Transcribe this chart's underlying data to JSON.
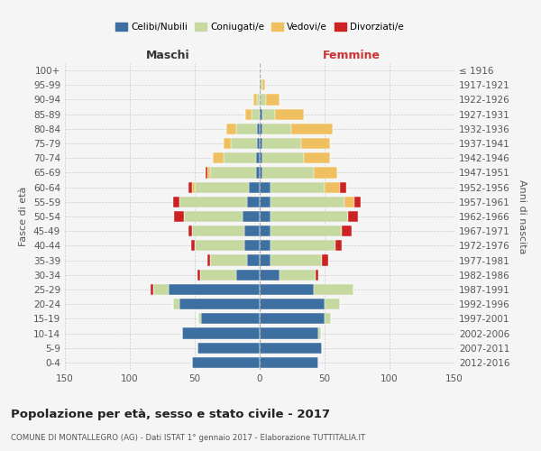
{
  "age_groups": [
    "0-4",
    "5-9",
    "10-14",
    "15-19",
    "20-24",
    "25-29",
    "30-34",
    "35-39",
    "40-44",
    "45-49",
    "50-54",
    "55-59",
    "60-64",
    "65-69",
    "70-74",
    "75-79",
    "80-84",
    "85-89",
    "90-94",
    "95-99",
    "100+"
  ],
  "birth_years": [
    "2012-2016",
    "2007-2011",
    "2002-2006",
    "1997-2001",
    "1992-1996",
    "1987-1991",
    "1982-1986",
    "1977-1981",
    "1972-1976",
    "1967-1971",
    "1962-1966",
    "1957-1961",
    "1952-1956",
    "1947-1951",
    "1942-1946",
    "1937-1941",
    "1932-1936",
    "1927-1931",
    "1922-1926",
    "1917-1921",
    "≤ 1916"
  ],
  "maschi": {
    "celibi": [
      52,
      48,
      60,
      45,
      62,
      70,
      18,
      10,
      12,
      12,
      13,
      10,
      8,
      3,
      3,
      2,
      2,
      0,
      0,
      0,
      0
    ],
    "coniugati": [
      0,
      0,
      0,
      2,
      5,
      12,
      28,
      28,
      38,
      40,
      45,
      52,
      42,
      35,
      25,
      20,
      16,
      6,
      2,
      0,
      0
    ],
    "vedovi": [
      0,
      0,
      0,
      0,
      0,
      0,
      0,
      0,
      0,
      0,
      0,
      0,
      2,
      2,
      8,
      6,
      8,
      5,
      3,
      0,
      0
    ],
    "divorziati": [
      0,
      0,
      0,
      0,
      0,
      2,
      2,
      2,
      3,
      3,
      8,
      5,
      3,
      2,
      0,
      0,
      0,
      0,
      0,
      0,
      0
    ]
  },
  "femmine": {
    "nubili": [
      45,
      48,
      45,
      50,
      50,
      42,
      15,
      8,
      8,
      8,
      8,
      8,
      8,
      2,
      2,
      2,
      2,
      2,
      0,
      0,
      0
    ],
    "coniugate": [
      0,
      0,
      2,
      5,
      12,
      30,
      28,
      40,
      50,
      55,
      60,
      57,
      42,
      40,
      32,
      30,
      22,
      10,
      5,
      2,
      0
    ],
    "vedove": [
      0,
      0,
      0,
      0,
      0,
      0,
      0,
      0,
      0,
      0,
      0,
      8,
      12,
      18,
      20,
      22,
      32,
      22,
      10,
      2,
      0
    ],
    "divorziate": [
      0,
      0,
      0,
      0,
      0,
      0,
      2,
      5,
      5,
      8,
      8,
      5,
      5,
      0,
      0,
      0,
      0,
      0,
      0,
      0,
      0
    ]
  },
  "colors": {
    "celibi_nubili": "#3d6fa0",
    "coniugati": "#c5d9a0",
    "vedovi": "#f0c060",
    "divorziati": "#cc2222"
  },
  "title": "Popolazione per età, sesso e stato civile - 2017",
  "subtitle": "COMUNE DI MONTALLEGRO (AG) - Dati ISTAT 1° gennaio 2017 - Elaborazione TUTTITALIA.IT",
  "xlabel_left": "Maschi",
  "xlabel_right": "Femmine",
  "ylabel_left": "Fasce di età",
  "ylabel_right": "Anni di nascita",
  "xlim": 150,
  "bg_color": "#f5f5f5",
  "bar_height": 0.75
}
